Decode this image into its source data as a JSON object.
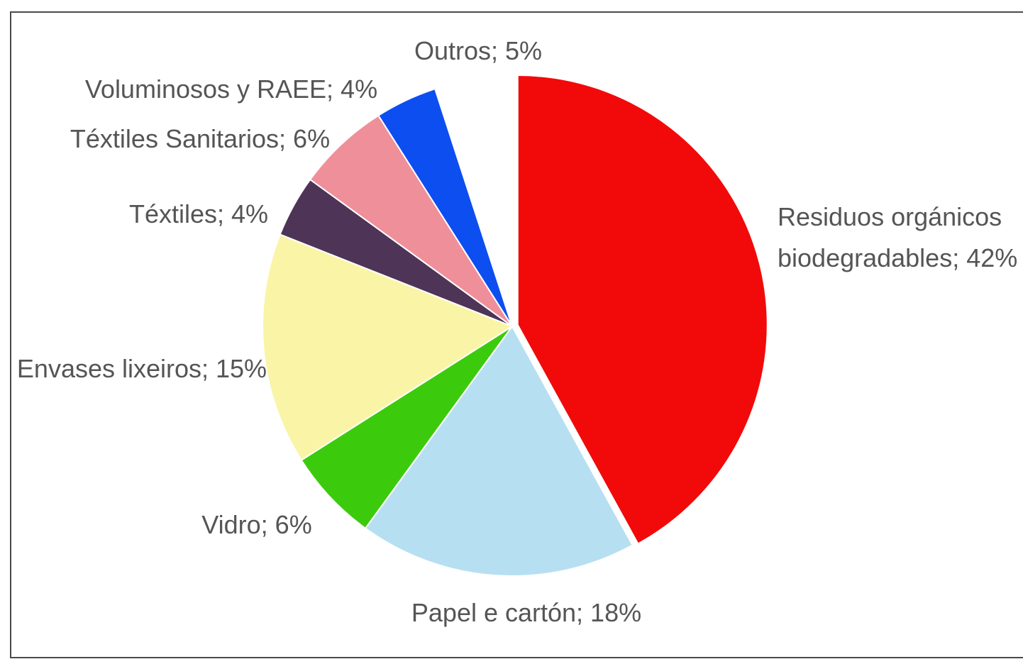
{
  "chart_data": {
    "type": "pie",
    "title": "",
    "slices": [
      {
        "label": "Residuos orgánicos biodegradables",
        "label_lines": [
          "Residuos orgánicos",
          "biodegradables; 42%"
        ],
        "value": 42,
        "color": "#f20a0a"
      },
      {
        "label": "Papel e cartón",
        "label_lines": [
          "Papel e cartón; 18%"
        ],
        "value": 18,
        "color": "#b7dff2"
      },
      {
        "label": "Vidro",
        "label_lines": [
          "Vidro; 6%"
        ],
        "value": 6,
        "color": "#3ccb0c"
      },
      {
        "label": "Envases lixeiros",
        "label_lines": [
          "Envases lixeiros; 15%"
        ],
        "value": 15,
        "color": "#faf5a6"
      },
      {
        "label": "Téxtiles",
        "label_lines": [
          "Téxtiles; 4%"
        ],
        "value": 4,
        "color": "#4e3457"
      },
      {
        "label": "Téxtiles Sanitarios",
        "label_lines": [
          "Téxtiles Sanitarios; 6%"
        ],
        "value": 6,
        "color": "#ef8f9a"
      },
      {
        "label": "Voluminosos y RAEE",
        "label_lines": [
          "Voluminosos y RAEE; 4%"
        ],
        "value": 4,
        "color": "#0d4ef0"
      },
      {
        "label": "Outros",
        "label_lines": [
          "Outros; 5%"
        ],
        "value": 5,
        "color": "#ffffff"
      }
    ]
  }
}
